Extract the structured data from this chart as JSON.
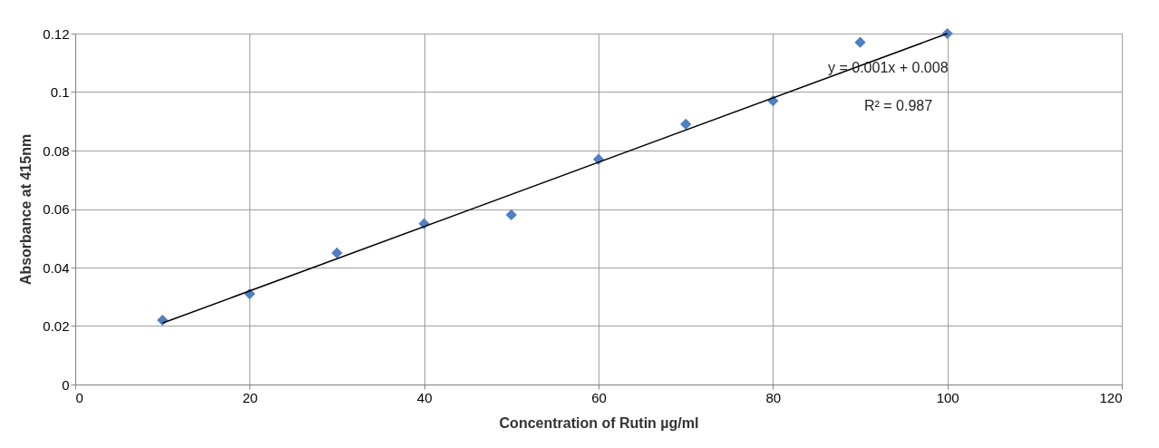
{
  "chart_data": {
    "type": "scatter",
    "xlabel": "Concentration of Rutin µg/ml",
    "ylabel": "Absorbance at 415nm",
    "x": [
      10,
      20,
      30,
      40,
      50,
      60,
      70,
      80,
      90,
      100
    ],
    "series": [
      {
        "color": "#4f7fc4",
        "marker": "diamond",
        "values": [
          0.022,
          0.031,
          0.045,
          0.055,
          0.058,
          0.077,
          0.089,
          0.097,
          0.117,
          0.12
        ]
      },
      {
        "type": "line",
        "color": "#000000",
        "marker": "none",
        "line_style": "solid",
        "x": [
          10,
          100
        ],
        "values": [
          0.021,
          0.12
        ]
      }
    ],
    "xlim": [
      0,
      120
    ],
    "xticks": [
      0,
      20,
      40,
      60,
      80,
      100,
      120
    ],
    "ylim": [
      0,
      0.12
    ],
    "yticks": [
      0,
      0.02,
      0.04,
      0.06,
      0.08,
      0.1,
      0.12
    ],
    "annotations": [
      "y = 0.001x + 0.008",
      "R² = 0.987"
    ],
    "grid": true
  }
}
